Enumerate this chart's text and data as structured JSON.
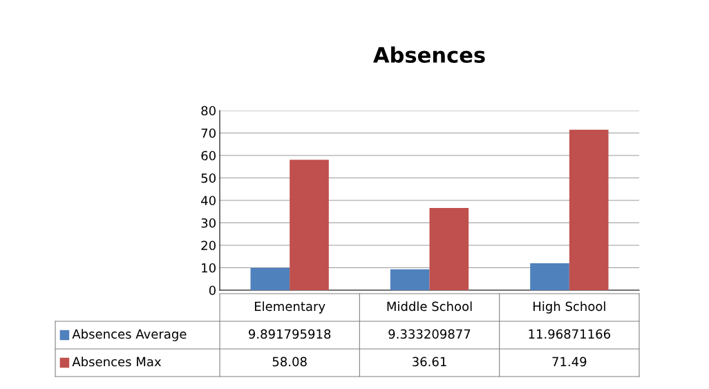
{
  "chart_data": {
    "type": "bar",
    "title": "Absences",
    "categories": [
      "Elementary",
      "Middle School",
      "High School"
    ],
    "series": [
      {
        "name": "Absences Average",
        "color": "#4f81bd",
        "values": [
          9.891795918,
          9.333209877,
          11.96871166
        ]
      },
      {
        "name": "Absences Max",
        "color": "#c0504d",
        "values": [
          58.08,
          36.61,
          71.49
        ]
      }
    ],
    "ylim": [
      0,
      80
    ],
    "yticks": [
      0,
      10,
      20,
      30,
      40,
      50,
      60,
      70,
      80
    ],
    "grid": "y",
    "data_labels": true,
    "legend": "bottom"
  }
}
